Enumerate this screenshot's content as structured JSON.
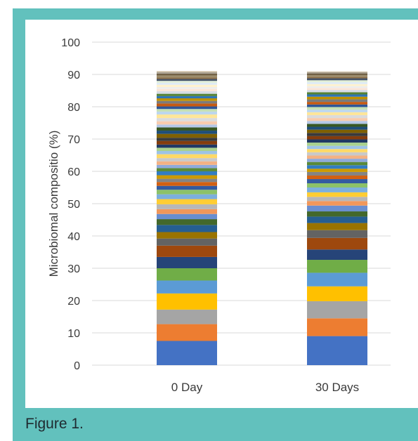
{
  "caption": "Figure 1.",
  "chart_data": {
    "type": "bar",
    "stacked": true,
    "title": "",
    "xlabel": "",
    "ylabel": "Microbiomal compositio (%)",
    "ylim": [
      0,
      100
    ],
    "yticks": [
      0,
      10,
      20,
      30,
      40,
      50,
      60,
      70,
      80,
      90,
      100
    ],
    "grid": true,
    "legend": "none",
    "categories": [
      "0 Day",
      "30 Days"
    ],
    "colors": [
      "#4472c4",
      "#ed7d31",
      "#a5a5a5",
      "#ffc000",
      "#5b9bd5",
      "#70ad47",
      "#264478",
      "#9e480e",
      "#636363",
      "#997300",
      "#255e91",
      "#43682b",
      "#698ed0",
      "#f1975a",
      "#b7b7b7",
      "#ffcd33",
      "#7cafdd",
      "#8cc168",
      "#335aa1",
      "#d26012",
      "#848484",
      "#cc9a00",
      "#327dc2",
      "#5a8a39",
      "#8faadc",
      "#f4b183",
      "#c9c9c9",
      "#ffd966",
      "#9dc3e6",
      "#a9d18e",
      "#203864",
      "#843c0c",
      "#3a3a3a",
      "#7f6000",
      "#1f4e79",
      "#385723",
      "#b4c7e7",
      "#f8cbad",
      "#dbdbdb",
      "#ffe699",
      "#bdd7ee",
      "#c5e0b4",
      "#2f5597",
      "#c55a11",
      "#7b7b7b",
      "#bf9000",
      "#2e75b6",
      "#548235",
      "#d6dce5",
      "#fbe5d6",
      "#ededed",
      "#fff2cc",
      "#deebf7",
      "#e2f0d9",
      "#44546a",
      "#8b6f47",
      "#9c8c6c",
      "#6b5a3c",
      "#a89f91",
      "#c8b89a"
    ],
    "series_values": {
      "0 Day": [
        7.5,
        5.2,
        4.5,
        5.0,
        4.0,
        3.8,
        3.5,
        3.5,
        2.2,
        2.0,
        2.2,
        1.8,
        1.6,
        1.5,
        1.5,
        1.6,
        1.5,
        1.4,
        1.2,
        1.2,
        1.0,
        1.1,
        1.2,
        1.0,
        1.0,
        1.1,
        1.0,
        1.2,
        1.0,
        1.0,
        1.0,
        1.1,
        1.0,
        1.2,
        1.0,
        1.0,
        0.9,
        1.0,
        1.0,
        1.1,
        0.9,
        0.8,
        0.8,
        0.9,
        0.8,
        0.8,
        0.7,
        0.7,
        0.8,
        0.7,
        0.6,
        0.7,
        0.6,
        0.6,
        0.6,
        0.5,
        0.6,
        0.5,
        0.5,
        0.3
      ],
      "30 Days": [
        9.0,
        5.5,
        5.3,
        4.6,
        4.2,
        4.0,
        3.2,
        3.6,
        2.4,
        2.2,
        2.0,
        1.6,
        1.8,
        1.4,
        1.3,
        1.4,
        1.5,
        1.3,
        1.3,
        1.1,
        1.1,
        1.0,
        1.1,
        1.0,
        1.0,
        1.0,
        1.0,
        1.0,
        1.0,
        1.0,
        1.0,
        1.0,
        1.0,
        1.0,
        0.9,
        0.9,
        0.9,
        0.9,
        0.9,
        0.9,
        0.8,
        0.8,
        0.8,
        0.8,
        0.8,
        0.8,
        0.7,
        0.7,
        0.7,
        0.6,
        0.6,
        0.6,
        0.6,
        0.6,
        0.6,
        0.5,
        0.5,
        0.5,
        0.4,
        0.2
      ]
    }
  }
}
